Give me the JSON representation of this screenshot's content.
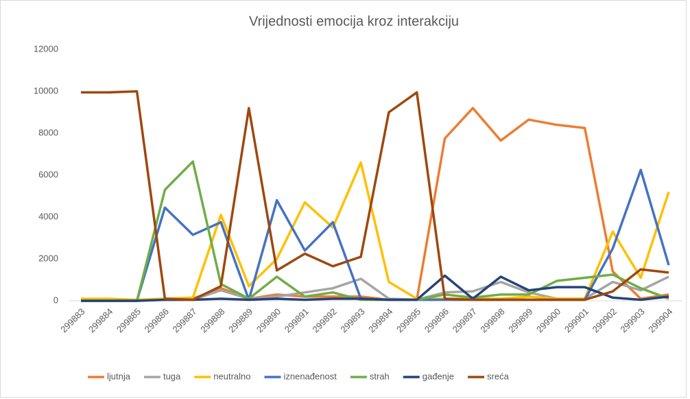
{
  "chart_data": {
    "type": "line",
    "title": "Vrijednosti emocija kroz interakciju",
    "categories": [
      "299883",
      "299884",
      "299885",
      "299886",
      "299887",
      "299888",
      "299889",
      "299890",
      "299891",
      "299892",
      "299893",
      "299894",
      "299895",
      "299896",
      "299897",
      "299898",
      "299899",
      "299900",
      "299901",
      "299902",
      "299903",
      "299904"
    ],
    "series": [
      {
        "name": "ljutnja",
        "color": "#ED7D31",
        "values": [
          50,
          50,
          50,
          100,
          100,
          600,
          100,
          300,
          200,
          200,
          200,
          50,
          50,
          7750,
          9200,
          7650,
          8650,
          8400,
          8250,
          1400,
          100,
          300
        ]
      },
      {
        "name": "tuga",
        "color": "#A5A5A5",
        "values": [
          0,
          0,
          0,
          50,
          50,
          500,
          100,
          200,
          400,
          600,
          1050,
          100,
          50,
          400,
          450,
          900,
          400,
          100,
          100,
          900,
          500,
          1150
        ]
      },
      {
        "name": "neutralno",
        "color": "#FFC000",
        "values": [
          100,
          100,
          50,
          100,
          150,
          4100,
          700,
          2000,
          4700,
          3500,
          6600,
          900,
          100,
          100,
          100,
          100,
          200,
          100,
          100,
          3300,
          1100,
          5200
        ]
      },
      {
        "name": "iznenađenost",
        "color": "#4472C4",
        "values": [
          0,
          0,
          0,
          4450,
          3150,
          3750,
          50,
          4800,
          2400,
          3750,
          100,
          50,
          50,
          50,
          50,
          50,
          50,
          50,
          50,
          2500,
          6250,
          1700
        ]
      },
      {
        "name": "strah",
        "color": "#70AD47",
        "values": [
          0,
          0,
          0,
          5300,
          6650,
          800,
          100,
          1150,
          200,
          400,
          50,
          50,
          50,
          300,
          150,
          300,
          300,
          950,
          1100,
          1250,
          600,
          100
        ]
      },
      {
        "name": "gađenje",
        "color": "#264478",
        "values": [
          0,
          0,
          0,
          50,
          50,
          100,
          50,
          100,
          50,
          100,
          100,
          50,
          50,
          1200,
          100,
          1150,
          500,
          650,
          650,
          150,
          50,
          200
        ]
      },
      {
        "name": "sreća",
        "color": "#9E480E",
        "values": [
          9950,
          9950,
          10000,
          100,
          50,
          700,
          9200,
          1450,
          2250,
          1650,
          2100,
          9000,
          9950,
          100,
          50,
          50,
          50,
          50,
          50,
          450,
          1500,
          1350
        ]
      }
    ],
    "ylim": [
      0,
      12000
    ],
    "yticks": [
      0,
      2000,
      4000,
      6000,
      8000,
      10000,
      12000
    ],
    "grid": false,
    "legend": "bottom"
  }
}
